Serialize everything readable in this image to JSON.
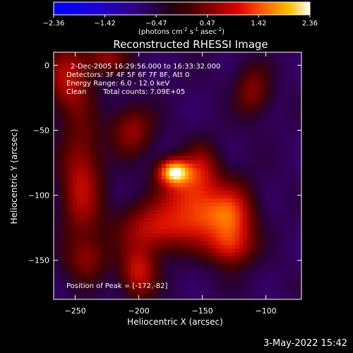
{
  "chart_data": {
    "type": "heatmap",
    "title": "Reconstructed RHESSI Image",
    "xlabel": "Heliocentric X (arcsec)",
    "ylabel": "Heliocentric Y (arcsec)",
    "xlim": [
      -267,
      -72
    ],
    "ylim": [
      -180,
      10
    ],
    "xticks": [
      -250,
      -200,
      -150,
      -100
    ],
    "yticks": [
      0,
      -50,
      -100,
      -150
    ],
    "colorbar": {
      "min": -2.36,
      "max": 2.36,
      "ticks": [
        "-2.36",
        "-1.42",
        "-0.47",
        "0.47",
        "1.42",
        "2.36"
      ],
      "unit_prefix": "(photons cm",
      "unit_sup1": "-2",
      "unit_mid1": " s",
      "unit_sup2": "-1",
      "unit_mid2": " asec",
      "unit_sup3": "-2",
      "unit_suffix": ")"
    },
    "annotations": {
      "time_range": "2-Dec-2005 16:29:56.000 to 16:33:32.000",
      "detectors": "Detectors: 3F 4F 5F 6F 7F 8F, Att 0",
      "energy": "Energy Range: 6.0 - 12.0 keV",
      "clean": "Clean",
      "total_counts": "Total counts: 7.09E+05",
      "peak": "Position of Peak = [-172,-82]"
    },
    "peak": {
      "x": -172,
      "y": -82
    },
    "sources": [
      {
        "x": -172,
        "y": -82,
        "amp": 2.4,
        "sx": 9,
        "sy": 7
      },
      {
        "x": -165,
        "y": -96,
        "amp": 0.9,
        "sx": 14,
        "sy": 12
      },
      {
        "x": -150,
        "y": -80,
        "amp": 1.0,
        "sx": 10,
        "sy": 14
      },
      {
        "x": -145,
        "y": -115,
        "amp": 1.3,
        "sx": 18,
        "sy": 14
      },
      {
        "x": -125,
        "y": -120,
        "amp": 1.1,
        "sx": 12,
        "sy": 22
      },
      {
        "x": -185,
        "y": -125,
        "amp": 1.3,
        "sx": 22,
        "sy": 14
      },
      {
        "x": -200,
        "y": -160,
        "amp": 1.3,
        "sx": 10,
        "sy": 14
      },
      {
        "x": -205,
        "y": -50,
        "amp": 1.0,
        "sx": 12,
        "sy": 14
      },
      {
        "x": -255,
        "y": -10,
        "amp": 1.2,
        "sx": 12,
        "sy": 18
      },
      {
        "x": -245,
        "y": -90,
        "amp": 1.2,
        "sx": 12,
        "sy": 35
      },
      {
        "x": -110,
        "y": -20,
        "amp": 0.9,
        "sx": 10,
        "sy": 14
      },
      {
        "x": -225,
        "y": 5,
        "amp": 0.9,
        "sx": 12,
        "sy": 8
      },
      {
        "x": -130,
        "y": -140,
        "amp": 0.8,
        "sx": 14,
        "sy": 10
      },
      {
        "x": -240,
        "y": -150,
        "amp": 0.7,
        "sx": 12,
        "sy": 12
      }
    ]
  },
  "footer": {
    "timestamp": "3-May-2022 15:42"
  }
}
